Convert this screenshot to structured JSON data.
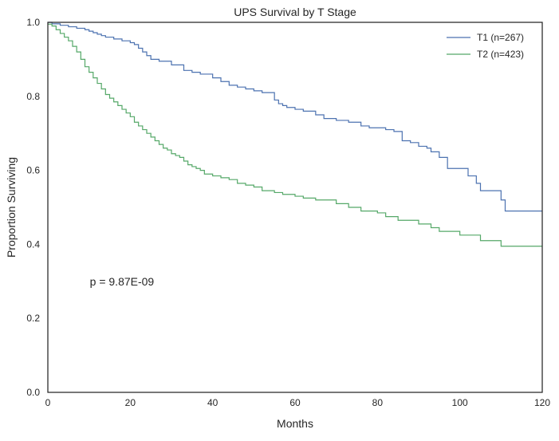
{
  "chart_data": {
    "type": "line",
    "step": true,
    "title": "UPS Survival by T Stage",
    "xlabel": "Months",
    "ylabel": "Proportion Surviving",
    "xlim": [
      0,
      120
    ],
    "ylim": [
      0.0,
      1.0
    ],
    "xticks": [
      0,
      20,
      40,
      60,
      80,
      100,
      120
    ],
    "xtick_labels": [
      "0",
      "20",
      "40",
      "60",
      "80",
      "100",
      "120"
    ],
    "yticks": [
      0.0,
      0.2,
      0.4,
      0.6,
      0.8,
      1.0
    ],
    "ytick_labels": [
      "0.0",
      "0.2",
      "0.4",
      "0.6",
      "0.8",
      "1.0"
    ],
    "grid": false,
    "legend_position": "top-right",
    "annotation": "p = 9.87E-09",
    "annotation_position": {
      "x": 10,
      "y": 0.3
    },
    "series": [
      {
        "name": "T1 (n=267)",
        "color": "#4c72b0",
        "x": [
          0,
          1,
          3,
          5,
          7,
          9,
          10,
          11,
          12,
          13,
          14,
          16,
          18,
          20,
          21,
          22,
          23,
          24,
          25,
          27,
          30,
          33,
          35,
          37,
          40,
          42,
          44,
          46,
          48,
          50,
          52,
          55,
          56,
          57,
          58,
          60,
          62,
          65,
          67,
          68,
          70,
          73,
          76,
          78,
          82,
          84,
          86,
          88,
          90,
          92,
          93,
          95,
          97,
          99,
          102,
          104,
          105,
          106,
          107,
          110,
          111,
          120
        ],
        "y": [
          1.0,
          0.996,
          0.992,
          0.988,
          0.984,
          0.98,
          0.976,
          0.972,
          0.968,
          0.964,
          0.96,
          0.955,
          0.95,
          0.945,
          0.94,
          0.93,
          0.92,
          0.91,
          0.9,
          0.895,
          0.885,
          0.87,
          0.865,
          0.86,
          0.85,
          0.84,
          0.83,
          0.825,
          0.82,
          0.815,
          0.81,
          0.79,
          0.78,
          0.775,
          0.77,
          0.765,
          0.76,
          0.75,
          0.74,
          0.74,
          0.735,
          0.73,
          0.72,
          0.715,
          0.71,
          0.705,
          0.68,
          0.675,
          0.665,
          0.66,
          0.65,
          0.635,
          0.605,
          0.605,
          0.585,
          0.565,
          0.545,
          0.545,
          0.545,
          0.52,
          0.49,
          0.49
        ]
      },
      {
        "name": "T2 (n=423)",
        "color": "#55a868",
        "x": [
          0,
          1,
          2,
          3,
          4,
          5,
          6,
          7,
          8,
          9,
          10,
          11,
          12,
          13,
          14,
          15,
          16,
          17,
          18,
          19,
          20,
          21,
          22,
          23,
          24,
          25,
          26,
          27,
          28,
          29,
          30,
          31,
          32,
          33,
          34,
          35,
          36,
          37,
          38,
          40,
          42,
          44,
          46,
          48,
          50,
          52,
          55,
          57,
          60,
          62,
          65,
          70,
          73,
          76,
          80,
          82,
          85,
          90,
          93,
          95,
          100,
          105,
          110,
          120
        ],
        "y": [
          0.995,
          0.99,
          0.98,
          0.97,
          0.96,
          0.95,
          0.935,
          0.92,
          0.9,
          0.88,
          0.865,
          0.85,
          0.835,
          0.82,
          0.805,
          0.795,
          0.785,
          0.775,
          0.765,
          0.755,
          0.745,
          0.73,
          0.72,
          0.71,
          0.7,
          0.69,
          0.68,
          0.67,
          0.66,
          0.655,
          0.645,
          0.64,
          0.635,
          0.625,
          0.615,
          0.61,
          0.605,
          0.6,
          0.59,
          0.585,
          0.58,
          0.575,
          0.565,
          0.56,
          0.555,
          0.545,
          0.54,
          0.535,
          0.53,
          0.525,
          0.52,
          0.51,
          0.5,
          0.49,
          0.485,
          0.475,
          0.465,
          0.455,
          0.445,
          0.435,
          0.425,
          0.41,
          0.395,
          0.395
        ]
      }
    ]
  }
}
